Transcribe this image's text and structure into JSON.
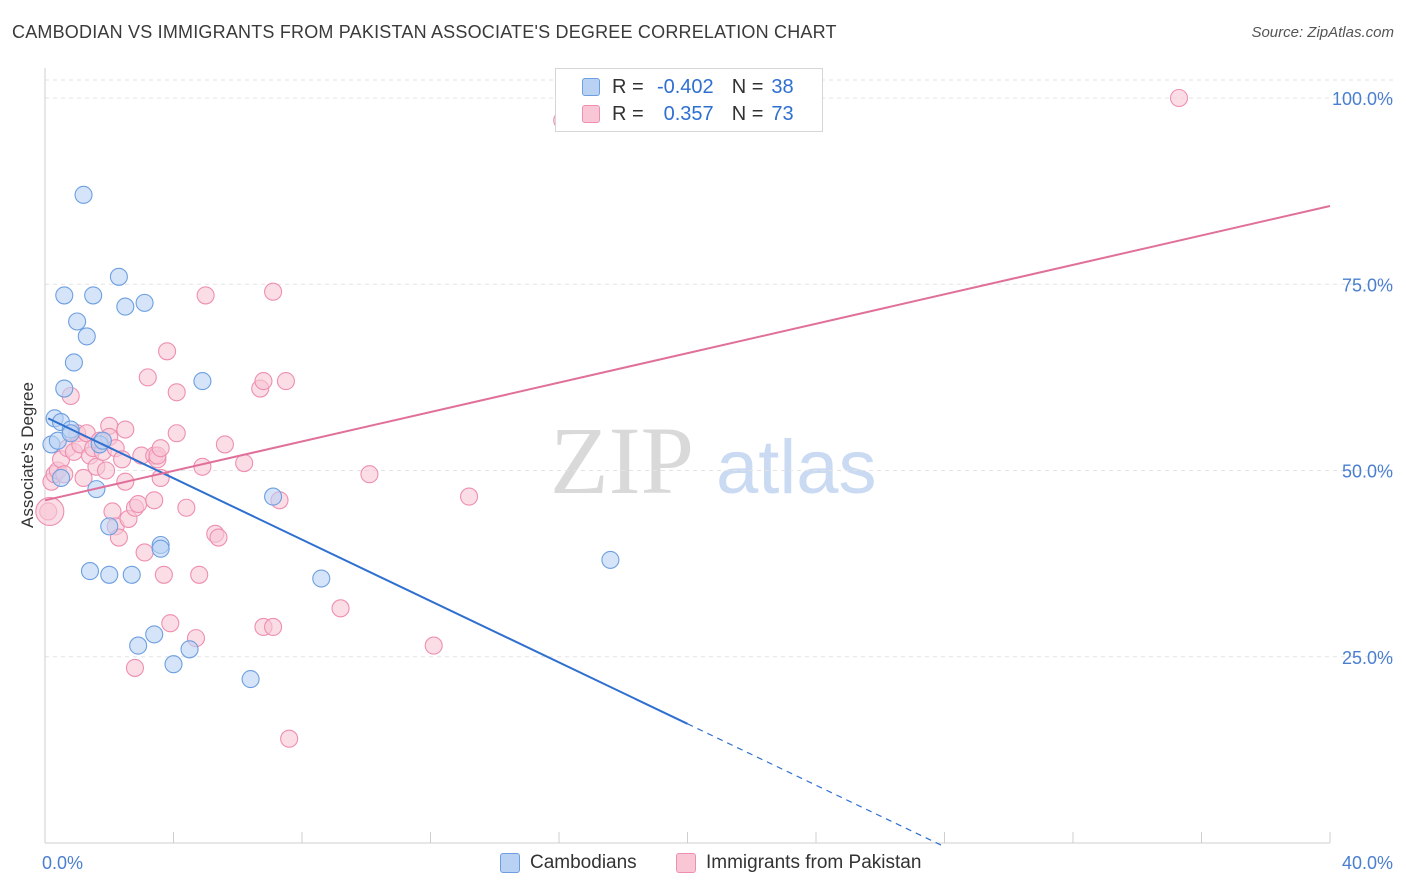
{
  "title": "CAMBODIAN VS IMMIGRANTS FROM PAKISTAN ASSOCIATE'S DEGREE CORRELATION CHART",
  "source": "Source: ZipAtlas.com",
  "watermark": {
    "zip": "ZIP",
    "atlas": "atlas"
  },
  "legend": {
    "r_label": "R =",
    "n_label": "N =",
    "rows": [
      {
        "r": "-0.402",
        "n": "38",
        "swatch_fill": "#b9d2f3",
        "swatch_stroke": "#6d9fe0"
      },
      {
        "r": "0.357",
        "n": "73",
        "swatch_fill": "#f8c6d5",
        "swatch_stroke": "#ee8fb0"
      }
    ]
  },
  "bottom_legend": [
    "Cambodians",
    "Immigrants from Pakistan"
  ],
  "chart_data": {
    "type": "scatter",
    "title": "CAMBODIAN VS IMMIGRANTS FROM PAKISTAN ASSOCIATE'S DEGREE CORRELATION CHART",
    "xlabel": "",
    "ylabel": "Associate's Degree",
    "xlim": [
      0,
      40
    ],
    "ylim": [
      0,
      100
    ],
    "x_tick_labels": [
      "0.0%",
      "40.0%"
    ],
    "y_ticks": [
      25,
      50,
      75,
      100
    ],
    "y_tick_labels": [
      "25.0%",
      "50.0%",
      "75.0%",
      "100.0%"
    ],
    "grid": true,
    "series": [
      {
        "name": "Cambodians",
        "color": "#6d9fe0",
        "fill": "#b9d2f3",
        "line_color": "#2e6fd0",
        "trend": {
          "x0": 0.1,
          "y0": 57.0,
          "x1": 20.0,
          "y1": 16.0,
          "dash_x1": 28.0,
          "dash_y1": -0.5
        },
        "points": [
          [
            0.2,
            53.5
          ],
          [
            0.3,
            57.0
          ],
          [
            0.4,
            54.0
          ],
          [
            0.5,
            49.0
          ],
          [
            0.5,
            56.5
          ],
          [
            0.6,
            61.0
          ],
          [
            0.6,
            73.5
          ],
          [
            0.8,
            55.5
          ],
          [
            0.8,
            55.0
          ],
          [
            0.9,
            64.5
          ],
          [
            1.0,
            70.0
          ],
          [
            1.2,
            87.0
          ],
          [
            1.3,
            68.0
          ],
          [
            1.4,
            36.5
          ],
          [
            1.5,
            73.5
          ],
          [
            1.6,
            47.5
          ],
          [
            1.7,
            53.5
          ],
          [
            1.8,
            54.0
          ],
          [
            2.0,
            42.5
          ],
          [
            2.0,
            36.0
          ],
          [
            2.3,
            76.0
          ],
          [
            2.5,
            72.0
          ],
          [
            2.7,
            36.0
          ],
          [
            2.9,
            26.5
          ],
          [
            3.1,
            72.5
          ],
          [
            3.4,
            28.0
          ],
          [
            3.6,
            40.0
          ],
          [
            3.6,
            39.5
          ],
          [
            4.0,
            24.0
          ],
          [
            4.5,
            26.0
          ],
          [
            4.9,
            62.0
          ],
          [
            6.4,
            22.0
          ],
          [
            7.1,
            46.5
          ],
          [
            8.6,
            35.5
          ],
          [
            17.6,
            38.0
          ]
        ]
      },
      {
        "name": "Immigrants from Pakistan",
        "color": "#ee8fb0",
        "fill": "#f8c6d5",
        "line_color": "#e0709a",
        "trend": {
          "x0": 0.0,
          "y0": 46.0,
          "x1": 40.0,
          "y1": 85.5
        },
        "points": [
          [
            0.1,
            44.5
          ],
          [
            0.2,
            48.5
          ],
          [
            0.3,
            49.5
          ],
          [
            0.4,
            50.0
          ],
          [
            0.5,
            51.5
          ],
          [
            0.6,
            49.5
          ],
          [
            0.7,
            53.0
          ],
          [
            0.8,
            60.0
          ],
          [
            0.9,
            52.5
          ],
          [
            1.0,
            55.0
          ],
          [
            1.1,
            53.5
          ],
          [
            1.2,
            49.0
          ],
          [
            1.3,
            55.0
          ],
          [
            1.4,
            52.0
          ],
          [
            1.5,
            53.0
          ],
          [
            1.6,
            50.5
          ],
          [
            1.7,
            54.0
          ],
          [
            1.8,
            52.5
          ],
          [
            1.9,
            50.0
          ],
          [
            2.0,
            56.0
          ],
          [
            2.0,
            54.5
          ],
          [
            2.1,
            44.5
          ],
          [
            2.2,
            42.5
          ],
          [
            2.2,
            53.0
          ],
          [
            2.3,
            41.0
          ],
          [
            2.4,
            51.5
          ],
          [
            2.5,
            55.5
          ],
          [
            2.5,
            48.5
          ],
          [
            2.6,
            43.5
          ],
          [
            2.8,
            23.5
          ],
          [
            2.8,
            45.0
          ],
          [
            2.9,
            45.5
          ],
          [
            3.0,
            52.0
          ],
          [
            3.1,
            39.0
          ],
          [
            3.2,
            62.5
          ],
          [
            3.4,
            52.0
          ],
          [
            3.4,
            46.0
          ],
          [
            3.5,
            51.5
          ],
          [
            3.5,
            52.0
          ],
          [
            3.6,
            53.0
          ],
          [
            3.6,
            49.0
          ],
          [
            3.7,
            36.0
          ],
          [
            3.8,
            66.0
          ],
          [
            3.9,
            29.5
          ],
          [
            4.1,
            60.5
          ],
          [
            4.1,
            55.0
          ],
          [
            4.4,
            45.0
          ],
          [
            4.7,
            27.5
          ],
          [
            4.8,
            36.0
          ],
          [
            4.9,
            50.5
          ],
          [
            5.0,
            73.5
          ],
          [
            5.3,
            41.5
          ],
          [
            5.4,
            41.0
          ],
          [
            5.6,
            53.5
          ],
          [
            6.2,
            51.0
          ],
          [
            6.7,
            61.0
          ],
          [
            6.8,
            62.0
          ],
          [
            6.8,
            29.0
          ],
          [
            7.1,
            29.0
          ],
          [
            7.1,
            74.0
          ],
          [
            7.3,
            46.0
          ],
          [
            7.5,
            62.0
          ],
          [
            7.6,
            14.0
          ],
          [
            9.2,
            31.5
          ],
          [
            10.1,
            49.5
          ],
          [
            12.1,
            26.5
          ],
          [
            13.2,
            46.5
          ],
          [
            16.1,
            97.0
          ],
          [
            35.3,
            100.0
          ]
        ]
      }
    ]
  }
}
